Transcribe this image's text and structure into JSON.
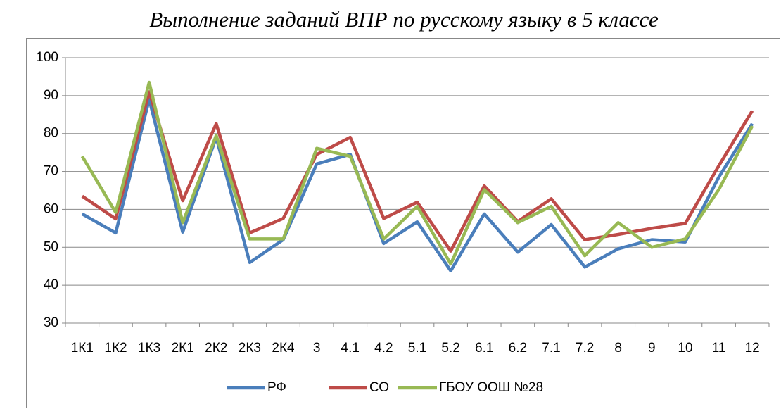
{
  "chart_data": {
    "type": "line",
    "title": "Выполнение заданий ВПР по русскому языку в 5 классе",
    "categories": [
      "1К1",
      "1К2",
      "1К3",
      "2К1",
      "2К2",
      "2К3",
      "2К4",
      "3",
      "4.1",
      "4.2",
      "5.1",
      "5.2",
      "6.1",
      "6.2",
      "7.1",
      "7.2",
      "8",
      "9",
      "10",
      "11",
      "12"
    ],
    "series": [
      {
        "name": "РФ",
        "color": "#4a7ebb",
        "values": [
          58.8,
          53.8,
          89,
          54,
          79,
          46,
          52,
          72,
          74.5,
          51,
          56.7,
          43.8,
          58.8,
          48.7,
          56,
          44.8,
          49.6,
          52,
          51.4,
          68.5,
          82.6
        ]
      },
      {
        "name": "СО",
        "color": "#be4b48",
        "values": [
          63.5,
          57.5,
          91,
          62.3,
          82.6,
          53.8,
          57.6,
          74.5,
          79,
          57.6,
          61.9,
          49,
          66.2,
          56.8,
          62.8,
          52,
          53.4,
          55,
          56.3,
          71.5,
          86
        ]
      },
      {
        "name": "ГБОУ ООШ №28",
        "color": "#98b954",
        "values": [
          74,
          59.2,
          93.5,
          56.5,
          79.5,
          52.2,
          52.2,
          76.1,
          74,
          52.2,
          60.8,
          45.6,
          65.2,
          56.5,
          60.8,
          47.8,
          56.5,
          50,
          52.2,
          65.2,
          82
        ]
      }
    ],
    "ylim": [
      30,
      100
    ],
    "yticks": [
      30,
      40,
      50,
      60,
      70,
      80,
      90,
      100
    ],
    "grid": true,
    "legend": "bottom"
  }
}
